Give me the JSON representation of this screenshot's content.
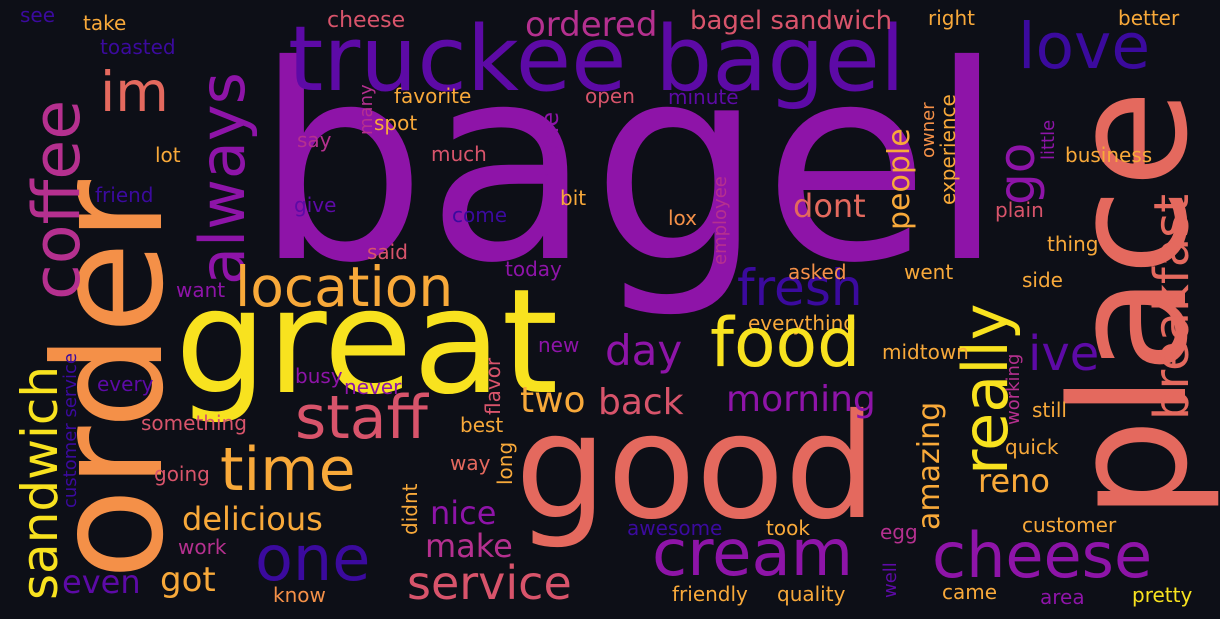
{
  "palette": {
    "background": "#0d0f17",
    "violet": "#8e14a8",
    "indigo": "#3b0a9e",
    "deep_purple": "#5d0aa6",
    "magenta": "#b5308f",
    "rose": "#d8546b",
    "coral": "#e4695e",
    "orange": "#f49048",
    "amber": "#f8a93a",
    "yellow": "#f8e21f",
    "navy": "#220a8c"
  },
  "words": [
    {
      "text": "bagel",
      "color": "#8e14a8"
    },
    {
      "text": "order",
      "color": "#f49048"
    },
    {
      "text": "great",
      "color": "#f8e21f"
    },
    {
      "text": "good",
      "color": "#e4695e"
    },
    {
      "text": "place",
      "color": "#e4695e"
    },
    {
      "text": "truckee bagel",
      "color": "#5d0aa6"
    },
    {
      "text": "coffee",
      "color": "#b5308f"
    },
    {
      "text": "sandwich",
      "color": "#f8e21f"
    },
    {
      "text": "im",
      "color": "#e4695e"
    },
    {
      "text": "always",
      "color": "#8e14a8"
    },
    {
      "text": "love",
      "color": "#3b0a9e"
    },
    {
      "text": "ordered",
      "color": "#b5308f"
    },
    {
      "text": "bagel sandwich",
      "color": "#d8546b"
    },
    {
      "text": "cheese",
      "color": "#d8546b"
    },
    {
      "text": "see",
      "color": "#3b0a9e"
    },
    {
      "text": "take",
      "color": "#f8a93a"
    },
    {
      "text": "toasted",
      "color": "#3b0a9e"
    },
    {
      "text": "right",
      "color": "#f8a93a"
    },
    {
      "text": "better",
      "color": "#f8a93a"
    },
    {
      "text": "favorite",
      "color": "#f8a93a"
    },
    {
      "text": "open",
      "color": "#d8546b"
    },
    {
      "text": "minute",
      "color": "#5d0aa6"
    },
    {
      "text": "many",
      "color": "#b5308f"
    },
    {
      "text": "spot",
      "color": "#f8a93a"
    },
    {
      "text": "made",
      "color": "#8e14a8"
    },
    {
      "text": "go",
      "color": "#8e14a8"
    },
    {
      "text": "people",
      "color": "#f8a93a"
    },
    {
      "text": "owner",
      "color": "#f49048"
    },
    {
      "text": "experience",
      "color": "#f8a93a"
    },
    {
      "text": "little",
      "color": "#8e14a8"
    },
    {
      "text": "breakfast",
      "color": "#e4695e"
    },
    {
      "text": "business",
      "color": "#f8a93a"
    },
    {
      "text": "say",
      "color": "#b5308f"
    },
    {
      "text": "much",
      "color": "#d8546b"
    },
    {
      "text": "lot",
      "color": "#f8a93a"
    },
    {
      "text": "friend",
      "color": "#3b0a9e"
    },
    {
      "text": "give",
      "color": "#5d0aa6"
    },
    {
      "text": "come",
      "color": "#3b0a9e"
    },
    {
      "text": "bit",
      "color": "#f8a93a"
    },
    {
      "text": "lox",
      "color": "#f49048"
    },
    {
      "text": "employee",
      "color": "#b5308f"
    },
    {
      "text": "dont",
      "color": "#e4695e"
    },
    {
      "text": "plain",
      "color": "#d8546b"
    },
    {
      "text": "thing",
      "color": "#f8a93a"
    },
    {
      "text": "said",
      "color": "#d8546b"
    },
    {
      "text": "today",
      "color": "#8e14a8"
    },
    {
      "text": "location",
      "color": "#f8a93a"
    },
    {
      "text": "fresh",
      "color": "#3b0a9e"
    },
    {
      "text": "asked",
      "color": "#f49048"
    },
    {
      "text": "went",
      "color": "#f8a93a"
    },
    {
      "text": "side",
      "color": "#f8a93a"
    },
    {
      "text": "want",
      "color": "#8e14a8"
    },
    {
      "text": "everything",
      "color": "#f8a93a"
    },
    {
      "text": "really",
      "color": "#f8e21f"
    },
    {
      "text": "new",
      "color": "#8e14a8"
    },
    {
      "text": "food",
      "color": "#f8e21f"
    },
    {
      "text": "day",
      "color": "#8e14a8"
    },
    {
      "text": "ive",
      "color": "#5d0aa6"
    },
    {
      "text": "midtown",
      "color": "#f8a93a"
    },
    {
      "text": "every",
      "color": "#5d0aa6"
    },
    {
      "text": "busy",
      "color": "#8e14a8"
    },
    {
      "text": "never",
      "color": "#8e14a8"
    },
    {
      "text": "flavor",
      "color": "#d8546b"
    },
    {
      "text": "working",
      "color": "#b5308f"
    },
    {
      "text": "staff",
      "color": "#d8546b"
    },
    {
      "text": "two",
      "color": "#f8a93a"
    },
    {
      "text": "back",
      "color": "#d8546b"
    },
    {
      "text": "morning",
      "color": "#8e14a8"
    },
    {
      "text": "still",
      "color": "#f8a93a"
    },
    {
      "text": "customer service",
      "color": "#3b0a9e"
    },
    {
      "text": "something",
      "color": "#d8546b"
    },
    {
      "text": "best",
      "color": "#f8a93a"
    },
    {
      "text": "amazing",
      "color": "#f8a93a"
    },
    {
      "text": "reno",
      "color": "#f8a93a"
    },
    {
      "text": "quick",
      "color": "#f8a93a"
    },
    {
      "text": "time",
      "color": "#f8a93a"
    },
    {
      "text": "going",
      "color": "#d8546b"
    },
    {
      "text": "way",
      "color": "#e4695e"
    },
    {
      "text": "long",
      "color": "#f8a93a"
    },
    {
      "text": "delicious",
      "color": "#f8a93a"
    },
    {
      "text": "nice",
      "color": "#8e14a8"
    },
    {
      "text": "didnt",
      "color": "#f8a93a"
    },
    {
      "text": "one",
      "color": "#3b0a9e"
    },
    {
      "text": "cream",
      "color": "#8e14a8"
    },
    {
      "text": "cheese",
      "color": "#8e14a8"
    },
    {
      "text": "make",
      "color": "#b5308f"
    },
    {
      "text": "awesome",
      "color": "#3b0a9e"
    },
    {
      "text": "took",
      "color": "#f8a93a"
    },
    {
      "text": "egg",
      "color": "#b5308f"
    },
    {
      "text": "customer",
      "color": "#f8a93a"
    },
    {
      "text": "service",
      "color": "#d8546b"
    },
    {
      "text": "got",
      "color": "#f8a93a"
    },
    {
      "text": "even",
      "color": "#5d0aa6"
    },
    {
      "text": "work",
      "color": "#b5308f"
    },
    {
      "text": "know",
      "color": "#f49048"
    },
    {
      "text": "well",
      "color": "#5d0aa6"
    },
    {
      "text": "friendly",
      "color": "#f8a93a"
    },
    {
      "text": "quality",
      "color": "#f8a93a"
    },
    {
      "text": "came",
      "color": "#f8a93a"
    },
    {
      "text": "area",
      "color": "#8e14a8"
    },
    {
      "text": "pretty",
      "color": "#f8e21f"
    }
  ]
}
